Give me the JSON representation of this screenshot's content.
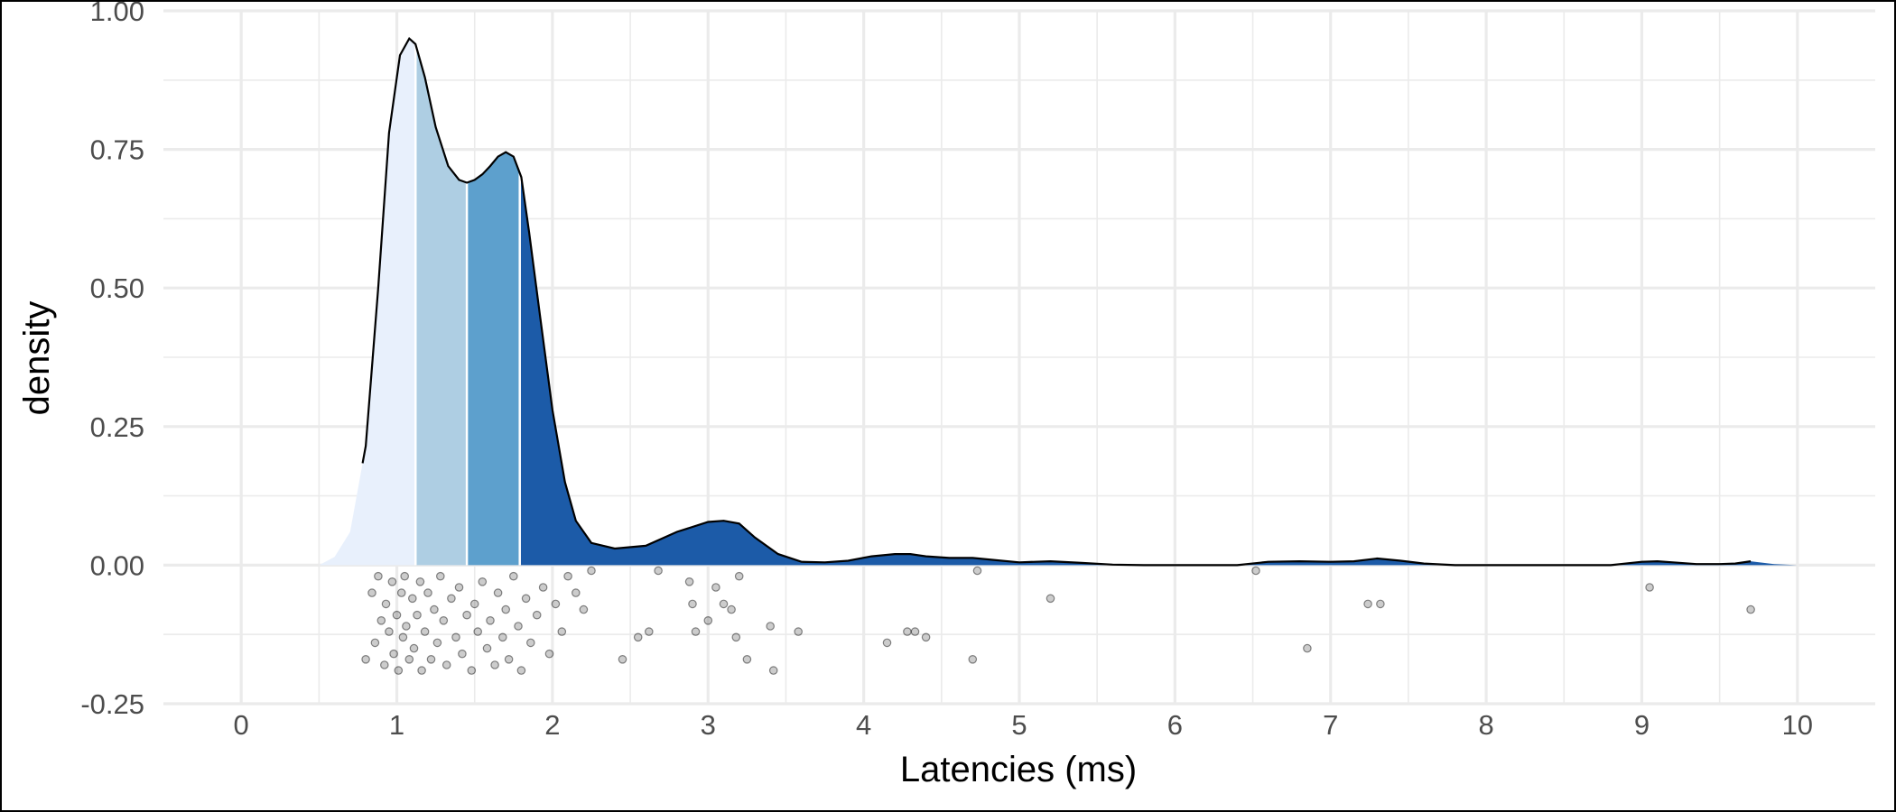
{
  "chart_data": {
    "type": "area",
    "xlabel": "Latencies (ms)",
    "ylabel": "density",
    "xlim": [
      -0.5,
      10.5
    ],
    "ylim": [
      -0.25,
      1.0
    ],
    "x_ticks": [
      "0",
      "1",
      "2",
      "3",
      "4",
      "5",
      "6",
      "7",
      "8",
      "9",
      "10"
    ],
    "y_ticks": [
      "-0.25",
      "0.00",
      "0.25",
      "0.50",
      "0.75",
      "1.00"
    ],
    "grid": true,
    "legend": "none",
    "density_curve": {
      "x": [
        0.5,
        0.6,
        0.7,
        0.8,
        0.88,
        0.95,
        1.02,
        1.08,
        1.12,
        1.18,
        1.25,
        1.33,
        1.4,
        1.45,
        1.5,
        1.55,
        1.6,
        1.65,
        1.7,
        1.75,
        1.8,
        1.85,
        1.92,
        2.0,
        2.08,
        2.15,
        2.25,
        2.4,
        2.6,
        2.8,
        3.0,
        3.1,
        3.2,
        3.3,
        3.45,
        3.6,
        3.75,
        3.9,
        4.05,
        4.2,
        4.3,
        4.4,
        4.55,
        4.7,
        4.85,
        5.0,
        5.2,
        5.4,
        5.6,
        5.8,
        6.0,
        6.2,
        6.4,
        6.6,
        6.8,
        7.0,
        7.15,
        7.3,
        7.45,
        7.6,
        7.8,
        8.0,
        8.2,
        8.4,
        8.6,
        8.8,
        9.0,
        9.1,
        9.2,
        9.35,
        9.5,
        9.6,
        9.7,
        9.85,
        10.0
      ],
      "y": [
        0.0,
        0.015,
        0.06,
        0.215,
        0.5,
        0.78,
        0.92,
        0.95,
        0.94,
        0.88,
        0.79,
        0.72,
        0.695,
        0.69,
        0.695,
        0.705,
        0.72,
        0.737,
        0.745,
        0.737,
        0.7,
        0.6,
        0.45,
        0.28,
        0.15,
        0.08,
        0.04,
        0.03,
        0.035,
        0.06,
        0.078,
        0.08,
        0.075,
        0.05,
        0.02,
        0.006,
        0.005,
        0.008,
        0.016,
        0.02,
        0.02,
        0.016,
        0.013,
        0.013,
        0.009,
        0.005,
        0.007,
        0.004,
        0.001,
        0.0,
        0.0,
        0.0,
        0.0,
        0.006,
        0.007,
        0.006,
        0.007,
        0.012,
        0.008,
        0.003,
        0.0,
        0.0,
        0.0,
        0.0,
        0.0,
        0.0,
        0.006,
        0.007,
        0.005,
        0.002,
        0.002,
        0.003,
        0.007,
        0.002,
        0.0
      ],
      "line_range": [
        0.78,
        9.7
      ]
    },
    "quantile_breaks": [
      1.12,
      1.45,
      1.79
    ],
    "quantile_fills": [
      "#e8f0fc",
      "#aecee3",
      "#5da0cd",
      "#1c5ba8"
    ],
    "jitter_points": {
      "x": [
        0.8,
        0.84,
        0.86,
        0.88,
        0.9,
        0.92,
        0.93,
        0.95,
        0.97,
        0.98,
        1.0,
        1.01,
        1.03,
        1.04,
        1.05,
        1.06,
        1.08,
        1.1,
        1.11,
        1.13,
        1.15,
        1.16,
        1.18,
        1.2,
        1.22,
        1.24,
        1.26,
        1.28,
        1.3,
        1.32,
        1.35,
        1.38,
        1.4,
        1.42,
        1.45,
        1.48,
        1.5,
        1.52,
        1.55,
        1.58,
        1.6,
        1.63,
        1.65,
        1.68,
        1.7,
        1.72,
        1.75,
        1.78,
        1.8,
        1.83,
        1.86,
        1.9,
        1.94,
        1.98,
        2.02,
        2.06,
        2.1,
        2.15,
        2.2,
        2.25,
        2.45,
        2.55,
        2.62,
        2.68,
        2.88,
        2.9,
        2.92,
        3.0,
        3.05,
        3.1,
        3.15,
        3.18,
        3.2,
        3.25,
        3.4,
        3.42,
        3.58,
        4.15,
        4.28,
        4.33,
        4.4,
        4.7,
        4.73,
        5.2,
        6.52,
        6.85,
        7.24,
        7.32,
        9.05,
        9.7
      ],
      "y": [
        -0.17,
        -0.05,
        -0.14,
        -0.02,
        -0.1,
        -0.18,
        -0.07,
        -0.12,
        -0.03,
        -0.16,
        -0.09,
        -0.19,
        -0.05,
        -0.13,
        -0.02,
        -0.11,
        -0.17,
        -0.06,
        -0.15,
        -0.09,
        -0.03,
        -0.19,
        -0.12,
        -0.05,
        -0.17,
        -0.08,
        -0.14,
        -0.02,
        -0.1,
        -0.18,
        -0.06,
        -0.13,
        -0.04,
        -0.16,
        -0.09,
        -0.19,
        -0.07,
        -0.12,
        -0.03,
        -0.15,
        -0.1,
        -0.18,
        -0.05,
        -0.13,
        -0.08,
        -0.17,
        -0.02,
        -0.11,
        -0.19,
        -0.06,
        -0.14,
        -0.09,
        -0.04,
        -0.16,
        -0.07,
        -0.12,
        -0.02,
        -0.05,
        -0.08,
        -0.01,
        -0.17,
        -0.13,
        -0.12,
        -0.01,
        -0.03,
        -0.07,
        -0.12,
        -0.1,
        -0.04,
        -0.07,
        -0.08,
        -0.13,
        -0.02,
        -0.17,
        -0.11,
        -0.19,
        -0.12,
        -0.14,
        -0.12,
        -0.12,
        -0.13,
        -0.17,
        -0.01,
        -0.06,
        -0.01,
        -0.15,
        -0.07,
        -0.07,
        -0.04,
        -0.08
      ]
    },
    "colors": {
      "grid": "#ebebeb",
      "curve": "#000000",
      "points": "#000000"
    }
  }
}
